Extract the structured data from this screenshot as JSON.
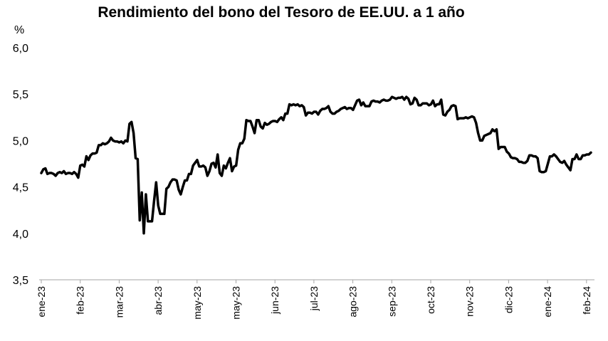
{
  "chart_data": {
    "type": "line",
    "title": "Rendimiento del bono del Tesoro de EE.UU. a 1 año",
    "ylabel": "%",
    "xlabel": "",
    "ylim": [
      3.5,
      6.0
    ],
    "yticks": [
      "3,5",
      "4,0",
      "4,5",
      "5,0",
      "5,5",
      "6,0"
    ],
    "ytick_values": [
      3.5,
      4.0,
      4.5,
      5.0,
      5.5,
      6.0
    ],
    "xticks": [
      "ene-23",
      "feb-23",
      "mar-23",
      "abr-23",
      "may-23",
      "may-23",
      "jun-23",
      "jul-23",
      "ago-23",
      "sep-23",
      "oct-23",
      "nov-23",
      "dic-23",
      "ene-24",
      "feb-24"
    ],
    "grid": false,
    "legend": "none",
    "line_color": "#000000",
    "series": [
      {
        "values": [
          4.65,
          4.69,
          4.7,
          4.64,
          4.65,
          4.65,
          4.64,
          4.62,
          4.65,
          4.66,
          4.65,
          4.67,
          4.64,
          4.65,
          4.65,
          4.64,
          4.66,
          4.64,
          4.6,
          4.73,
          4.74,
          4.72,
          4.83,
          4.79,
          4.84,
          4.86,
          4.86,
          4.87,
          4.95,
          4.95,
          4.97,
          4.96,
          4.97,
          4.99,
          5.03,
          5.0,
          4.99,
          4.99,
          4.98,
          4.99,
          4.97,
          5.0,
          4.99,
          5.18,
          5.2,
          5.08,
          4.81,
          4.8,
          4.14,
          4.44,
          4.0,
          4.42,
          4.13,
          4.13,
          4.13,
          4.35,
          4.55,
          4.3,
          4.21,
          4.21,
          4.21,
          4.48,
          4.5,
          4.55,
          4.58,
          4.58,
          4.57,
          4.47,
          4.42,
          4.5,
          4.57,
          4.57,
          4.64,
          4.64,
          4.73,
          4.76,
          4.79,
          4.72,
          4.72,
          4.73,
          4.71,
          4.62,
          4.67,
          4.75,
          4.76,
          4.71,
          4.85,
          4.65,
          4.62,
          4.73,
          4.7,
          4.76,
          4.81,
          4.67,
          4.72,
          4.73,
          4.9,
          4.97,
          4.97,
          5.02,
          5.22,
          5.21,
          5.21,
          5.15,
          5.08,
          5.22,
          5.22,
          5.15,
          5.13,
          5.19,
          5.17,
          5.18,
          5.2,
          5.21,
          5.21,
          5.2,
          5.23,
          5.25,
          5.22,
          5.29,
          5.29,
          5.39,
          5.38,
          5.39,
          5.38,
          5.39,
          5.37,
          5.38,
          5.36,
          5.27,
          5.3,
          5.3,
          5.29,
          5.31,
          5.31,
          5.28,
          5.32,
          5.34,
          5.34,
          5.35,
          5.37,
          5.31,
          5.29,
          5.29,
          5.31,
          5.32,
          5.34,
          5.35,
          5.36,
          5.34,
          5.35,
          5.35,
          5.33,
          5.38,
          5.43,
          5.44,
          5.38,
          5.41,
          5.37,
          5.37,
          5.37,
          5.42,
          5.43,
          5.42,
          5.42,
          5.41,
          5.43,
          5.44,
          5.43,
          5.43,
          5.44,
          5.47,
          5.46,
          5.45,
          5.46,
          5.46,
          5.47,
          5.44,
          5.47,
          5.45,
          5.39,
          5.4,
          5.46,
          5.44,
          5.38,
          5.38,
          5.4,
          5.4,
          5.4,
          5.38,
          5.39,
          5.43,
          5.37,
          5.39,
          5.39,
          5.44,
          5.28,
          5.27,
          5.31,
          5.33,
          5.37,
          5.38,
          5.37,
          5.23,
          5.24,
          5.24,
          5.24,
          5.25,
          5.24,
          5.25,
          5.26,
          5.25,
          5.19,
          5.08,
          5.0,
          5.0,
          5.05,
          5.06,
          5.07,
          5.08,
          5.12,
          5.1,
          5.12,
          4.91,
          4.93,
          4.93,
          4.93,
          4.88,
          4.86,
          4.82,
          4.81,
          4.81,
          4.8,
          4.77,
          4.77,
          4.76,
          4.76,
          4.78,
          4.84,
          4.84,
          4.83,
          4.83,
          4.81,
          4.67,
          4.66,
          4.66,
          4.67,
          4.75,
          4.83,
          4.83,
          4.85,
          4.83,
          4.8,
          4.77,
          4.76,
          4.78,
          4.74,
          4.71,
          4.68,
          4.8,
          4.8,
          4.85,
          4.8,
          4.8,
          4.84,
          4.84,
          4.85,
          4.85,
          4.87
        ]
      }
    ]
  }
}
